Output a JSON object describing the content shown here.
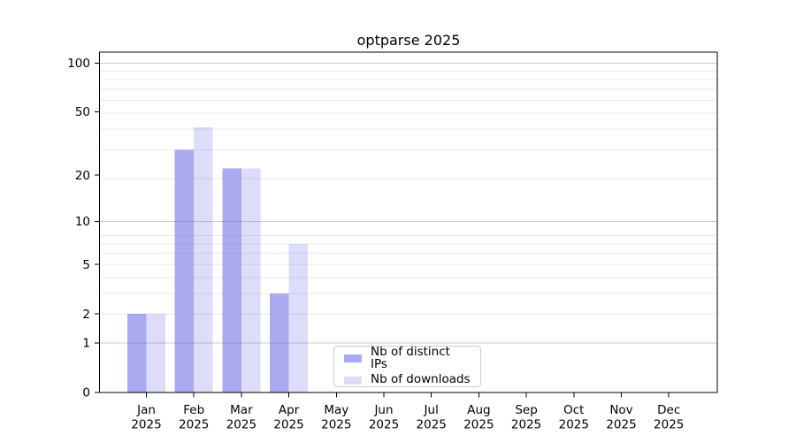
{
  "chart_data": {
    "type": "bar",
    "title": "optparse 2025",
    "categories": [
      "Jan 2025",
      "Feb 2025",
      "Mar 2025",
      "Apr 2025",
      "May 2025",
      "Jun 2025",
      "Jul 2025",
      "Aug 2025",
      "Sep 2025",
      "Oct 2025",
      "Nov 2025",
      "Dec 2025"
    ],
    "series": [
      {
        "name": "Nb of distinct IPs",
        "color": "rgba(100,100,230,0.55)",
        "values": [
          2,
          29,
          22,
          3,
          0,
          0,
          0,
          0,
          0,
          0,
          0,
          0
        ]
      },
      {
        "name": "Nb of downloads",
        "color": "rgba(100,100,230,0.22)",
        "values": [
          2,
          40,
          22,
          7,
          0,
          0,
          0,
          0,
          0,
          0,
          0,
          0
        ]
      }
    ],
    "yaxis": {
      "scale": "log10(1+value)",
      "ticks": [
        0,
        1,
        2,
        5,
        10,
        20,
        50,
        100
      ],
      "ylim": [
        0,
        120
      ]
    },
    "xlabel": "",
    "ylabel": "",
    "grid": true,
    "legend": {
      "location": "lower center"
    }
  }
}
